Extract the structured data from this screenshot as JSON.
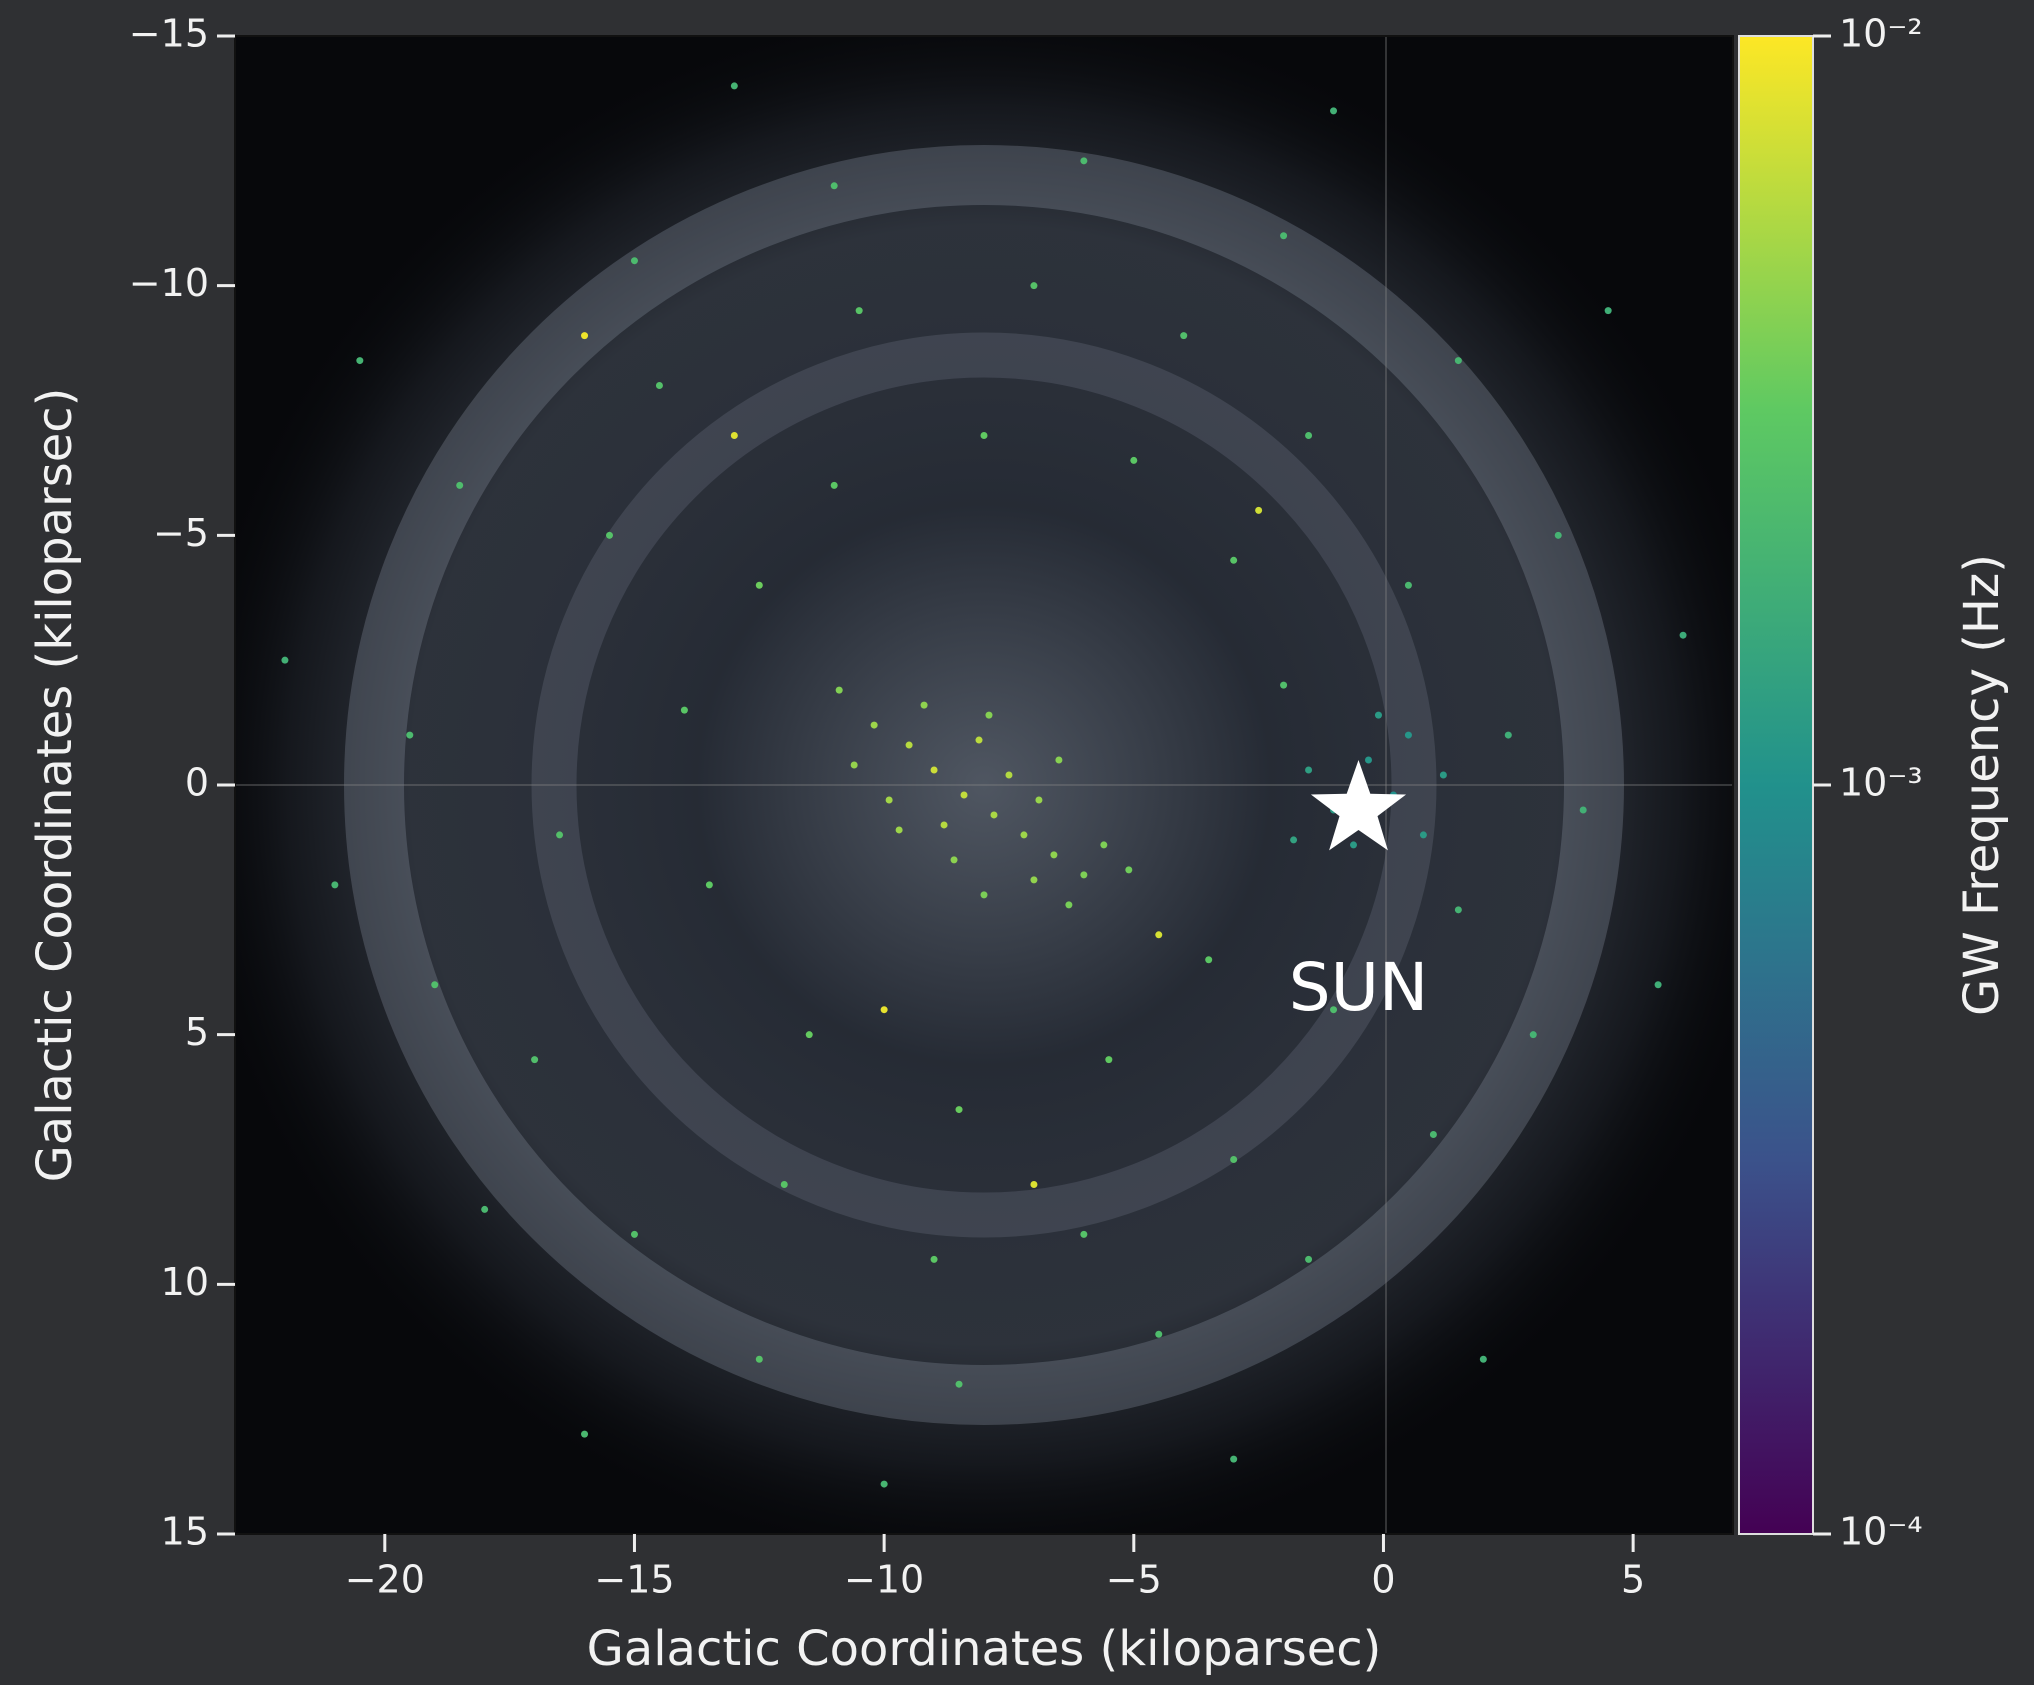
{
  "chart_data": {
    "type": "scatter",
    "xlabel": "Galactic Coordinates (kiloparsec)",
    "ylabel": "Galactic Coordinates (kiloparsec)",
    "colorbar_label": "GW Frequency (Hz)",
    "colormap": "viridis",
    "xlim": [
      -23,
      7
    ],
    "ylim": [
      15,
      -15
    ],
    "xticks": [
      {
        "value": -20,
        "label": "−20"
      },
      {
        "value": -15,
        "label": "−15"
      },
      {
        "value": -10,
        "label": "−10"
      },
      {
        "value": -5,
        "label": "−5"
      },
      0,
      5
    ],
    "yticks": [
      {
        "value": -15,
        "label": "−15"
      },
      {
        "value": -10,
        "label": "−10"
      },
      {
        "value": -5,
        "label": "−5"
      },
      0,
      5,
      10,
      15
    ],
    "clim": [
      0.0001,
      0.01
    ],
    "clog": true,
    "cticks": [
      {
        "value": 0.01,
        "label": "10⁻²"
      },
      {
        "value": 0.001,
        "label": "10⁻³"
      },
      {
        "value": 0.0001,
        "label": "10⁻⁴"
      }
    ],
    "sun": {
      "x": -0.5,
      "y": 0.5,
      "label": "SUN"
    },
    "x": [
      -9.5,
      -9.0,
      -8.4,
      -7.8,
      -7.2,
      -6.6,
      -6.0,
      -10.2,
      -8.8,
      -7.5,
      -9.9,
      -8.1,
      -6.9,
      -5.6,
      -10.6,
      -9.2,
      -7.0,
      -8.6,
      -6.3,
      -9.7,
      -7.9,
      -6.5,
      -5.1,
      -10.9,
      -8.0,
      -12.5,
      -11.0,
      -8.0,
      -5.0,
      -3.0,
      -2.0,
      -3.5,
      -5.5,
      -8.5,
      -11.5,
      -13.5,
      -14.0,
      -12.0,
      -9.0,
      -6.0,
      -3.0,
      -1.0,
      -15.5,
      -14.5,
      -10.5,
      -7.0,
      -4.0,
      -1.5,
      0.5,
      1.5,
      2.5,
      -16.5,
      -17.0,
      -15.0,
      -12.5,
      -8.5,
      -4.5,
      -1.5,
      1.0,
      3.0,
      4.0,
      3.5,
      1.5,
      -2.0,
      -6.0,
      -11.0,
      -15.0,
      -18.5,
      -19.5,
      -19.0,
      -18.0,
      -21.0,
      -20.5,
      -16.0,
      -10.0,
      -3.0,
      2.0,
      5.5,
      6.0,
      4.5,
      -1.0,
      -13.0,
      -22.0,
      -0.3,
      0.2,
      -1.0,
      -0.6,
      0.5,
      -1.5,
      0.8,
      -0.1,
      -1.8,
      1.2,
      -13.0,
      -4.5,
      -10.0,
      -16.0,
      -7.0,
      -2.5
    ],
    "y": [
      -0.8,
      -0.3,
      0.2,
      0.6,
      1.0,
      1.4,
      1.8,
      -1.2,
      0.8,
      -0.2,
      0.3,
      -0.9,
      0.3,
      1.2,
      -0.4,
      -1.6,
      1.9,
      1.5,
      2.4,
      0.9,
      -1.4,
      -0.5,
      1.7,
      -1.9,
      2.2,
      -4.0,
      -6.0,
      -7.0,
      -6.5,
      -4.5,
      -2.0,
      3.5,
      5.5,
      6.5,
      5.0,
      2.0,
      -1.5,
      8.0,
      9.5,
      9.0,
      7.5,
      4.5,
      -5.0,
      -8.0,
      -9.5,
      -10.0,
      -9.0,
      -7.0,
      -4.0,
      2.5,
      -1.0,
      1.0,
      5.5,
      9.0,
      11.5,
      12.0,
      11.0,
      9.5,
      7.0,
      5.0,
      0.5,
      -5.0,
      -8.5,
      -11.0,
      -12.5,
      -12.0,
      -10.5,
      -6.0,
      -1.0,
      4.0,
      8.5,
      2.0,
      -8.5,
      13.0,
      14.0,
      13.5,
      11.5,
      4.0,
      -3.0,
      -9.5,
      -13.5,
      -14.0,
      -2.5,
      -0.5,
      0.2,
      0.5,
      1.2,
      -1.0,
      -0.3,
      1.0,
      -1.4,
      1.1,
      -0.2,
      -7.0,
      3.0,
      4.5,
      -9.0,
      8.0,
      -5.5
    ],
    "values": [
      0.006,
      0.007,
      0.0065,
      0.0055,
      0.005,
      0.0045,
      0.004,
      0.005,
      0.006,
      0.0058,
      0.0052,
      0.0062,
      0.0048,
      0.004,
      0.0047,
      0.0045,
      0.0046,
      0.0044,
      0.0038,
      0.005,
      0.0042,
      0.0043,
      0.0036,
      0.0041,
      0.0039,
      0.0035,
      0.003,
      0.0032,
      0.003,
      0.0028,
      0.0025,
      0.003,
      0.0032,
      0.0034,
      0.0033,
      0.0031,
      0.0029,
      0.0028,
      0.003,
      0.0027,
      0.0026,
      0.0024,
      0.0027,
      0.0026,
      0.0028,
      0.0027,
      0.0025,
      0.0024,
      0.0022,
      0.002,
      0.0018,
      0.0026,
      0.0025,
      0.0026,
      0.0027,
      0.0025,
      0.0024,
      0.0023,
      0.0022,
      0.002,
      0.0019,
      0.002,
      0.0021,
      0.0022,
      0.0023,
      0.0024,
      0.0023,
      0.0024,
      0.0023,
      0.0025,
      0.0022,
      0.0021,
      0.002,
      0.0022,
      0.0021,
      0.002,
      0.0019,
      0.0018,
      0.0017,
      0.0018,
      0.0019,
      0.002,
      0.0019,
      0.0011,
      0.001,
      0.0012,
      0.0012,
      0.0011,
      0.0013,
      0.0012,
      0.0012,
      0.0014,
      0.0012,
      0.008,
      0.0075,
      0.0085,
      0.009,
      0.0078,
      0.0072
    ]
  }
}
